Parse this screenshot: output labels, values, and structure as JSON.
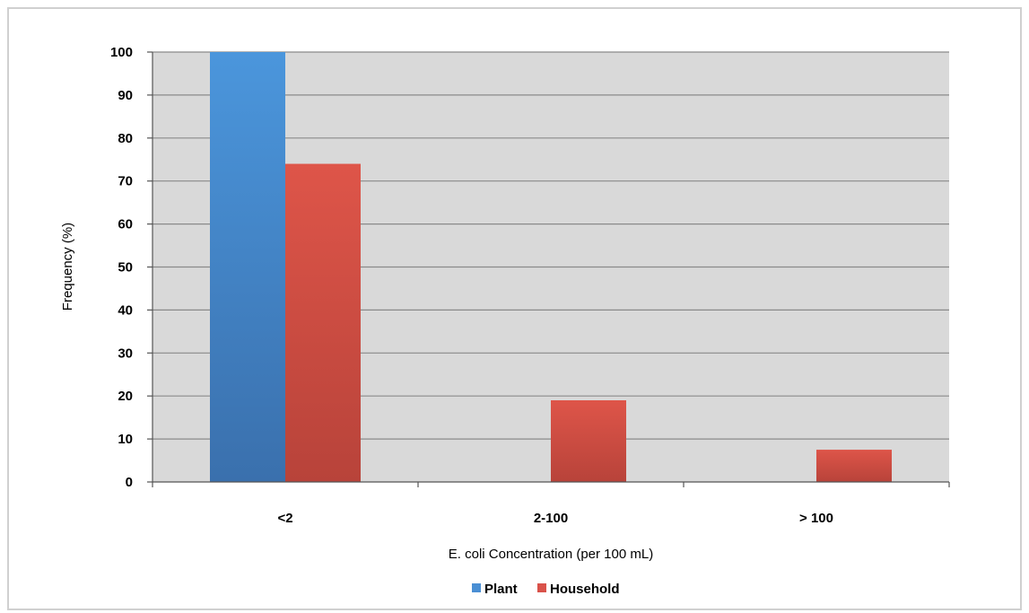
{
  "chart_data": {
    "type": "bar",
    "categories": [
      "<2",
      "2-100",
      "> 100"
    ],
    "series": [
      {
        "name": "Plant",
        "values": [
          100,
          0,
          0
        ],
        "color": "#4a8fd4"
      },
      {
        "name": "Household",
        "values": [
          74,
          19,
          7.5
        ],
        "color": "#d9524a"
      }
    ],
    "xlabel": "E. coli Concentration (per 100 mL)",
    "ylabel": "Frequency (%)",
    "ylim": [
      0,
      100
    ],
    "yticks": [
      0,
      10,
      20,
      30,
      40,
      50,
      60,
      70,
      80,
      90,
      100
    ],
    "plot_background": "#d9d9d9",
    "grid": true,
    "legend_position": "bottom"
  }
}
